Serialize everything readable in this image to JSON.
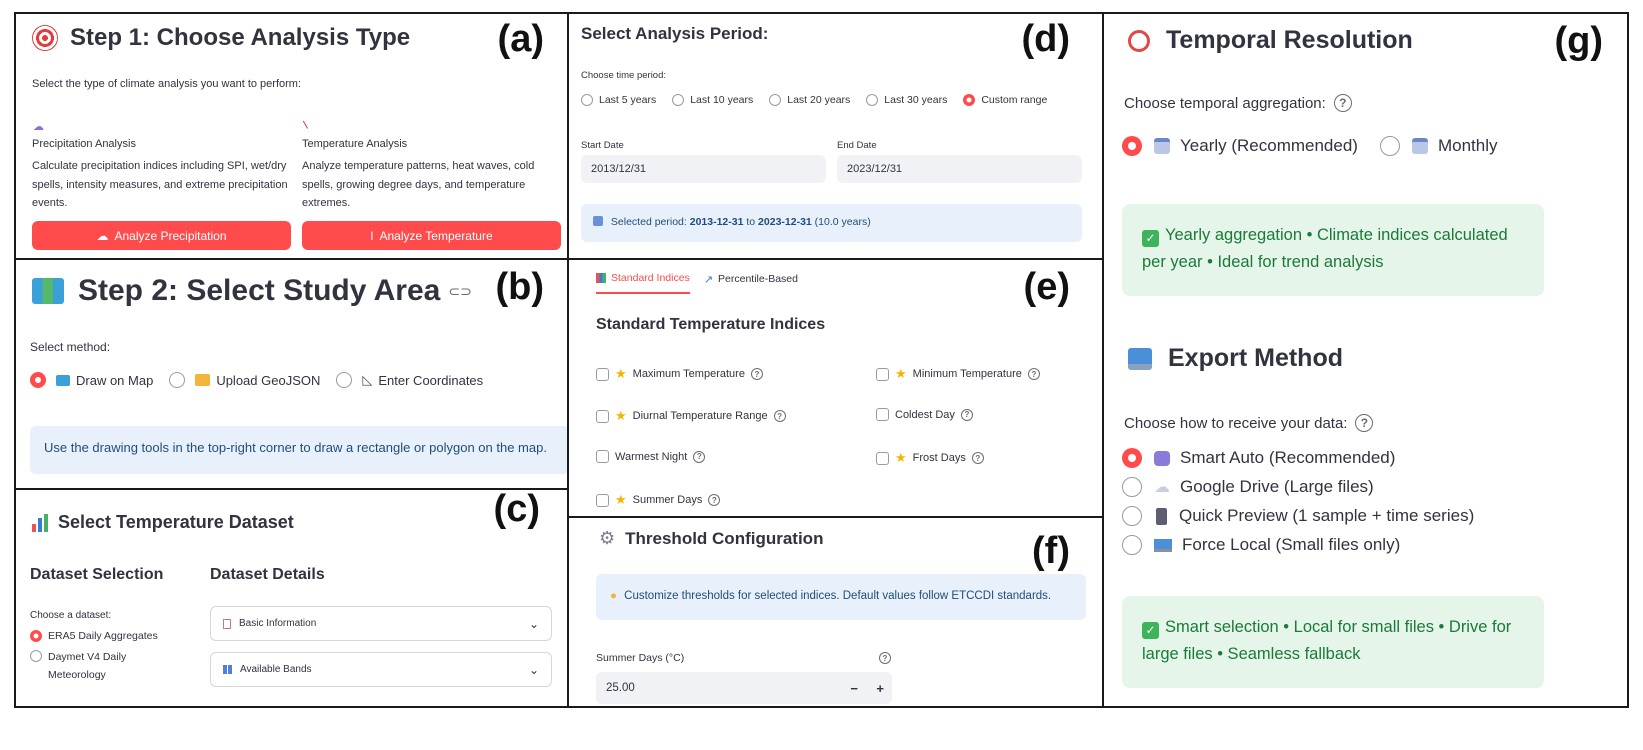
{
  "panel_labels": {
    "a": "(a)",
    "b": "(b)",
    "c": "(c)",
    "d": "(d)",
    "e": "(e)",
    "f": "(f)",
    "g": "(g)"
  },
  "step1": {
    "title": "Step 1: Choose Analysis Type",
    "subtitle": "Select the type of climate analysis you want to perform:",
    "precip": {
      "title": "Precipitation Analysis",
      "desc": "Calculate precipitation indices including SPI, wet/dry spells, intensity measures, and extreme precipitation events.",
      "button": "Analyze Precipitation"
    },
    "temp": {
      "title": "Temperature Analysis",
      "desc": "Analyze temperature patterns, heat waves, cold spells, growing degree days, and temperature extremes.",
      "button": "Analyze Temperature"
    }
  },
  "step2": {
    "title": "Step 2: Select Study Area",
    "method_label": "Select method:",
    "options": [
      "Draw on Map",
      "Upload GeoJSON",
      "Enter Coordinates"
    ],
    "selected": "Draw on Map",
    "info": "Use the drawing tools in the top-right corner to draw a rectangle or polygon on the map."
  },
  "dataset": {
    "title": "Select Temperature Dataset",
    "selection_header": "Dataset Selection",
    "details_header": "Dataset Details",
    "choose_label": "Choose a dataset:",
    "options": [
      "ERA5 Daily Aggregates",
      "Daymet V4 Daily Meteorology"
    ],
    "selected": "ERA5 Daily Aggregates",
    "expanders": [
      "Basic Information",
      "Available Bands"
    ]
  },
  "period": {
    "title": "Select Analysis Period:",
    "choose_label": "Choose time period:",
    "options": [
      "Last 5 years",
      "Last 10 years",
      "Last 20 years",
      "Last 30 years",
      "Custom range"
    ],
    "selected": "Custom range",
    "start_label": "Start Date",
    "start_value": "2013/12/31",
    "end_label": "End Date",
    "end_value": "2023/12/31",
    "info_prefix": "Selected period: ",
    "info_start": "2013-12-31",
    "info_mid": " to ",
    "info_end": "2023-12-31",
    "info_suffix": " (10.0 years)"
  },
  "indices": {
    "tabs": [
      "Standard Indices",
      "Percentile-Based"
    ],
    "active_tab": "Standard Indices",
    "title": "Standard Temperature Indices",
    "items": [
      {
        "label": "Maximum Temperature",
        "star": true
      },
      {
        "label": "Minimum Temperature",
        "star": true
      },
      {
        "label": "Diurnal Temperature Range",
        "star": true
      },
      {
        "label": "Coldest Day",
        "star": false
      },
      {
        "label": "Warmest Night",
        "star": false
      },
      {
        "label": "Frost Days",
        "star": true
      },
      {
        "label": "Summer Days",
        "star": true
      }
    ]
  },
  "threshold": {
    "title": "Threshold Configuration",
    "info": "Customize thresholds for selected indices. Default values follow ETCCDI standards.",
    "field_label": "Summer Days (°C)",
    "field_value": "25.00",
    "minus": "−",
    "plus": "+"
  },
  "temporal": {
    "title": "Temporal Resolution",
    "choose_label": "Choose temporal aggregation:",
    "options": [
      "Yearly (Recommended)",
      "Monthly"
    ],
    "selected": "Yearly (Recommended)",
    "info": "Yearly aggregation • Climate indices calculated per year • Ideal for trend analysis"
  },
  "export": {
    "title": "Export Method",
    "choose_label": "Choose how to receive your data:",
    "options": [
      "Smart Auto (Recommended)",
      "Google Drive (Large files)",
      "Quick Preview (1 sample + time series)",
      "Force Local (Small files only)"
    ],
    "selected": "Smart Auto (Recommended)",
    "info": "Smart selection • Local for small files • Drive for large files • Seamless fallback"
  },
  "colors": {
    "accent": "#ff4b4b",
    "info_blue_bg": "#e8f1fb",
    "success_bg": "#e6f5ea",
    "success_text": "#1b7a38"
  }
}
